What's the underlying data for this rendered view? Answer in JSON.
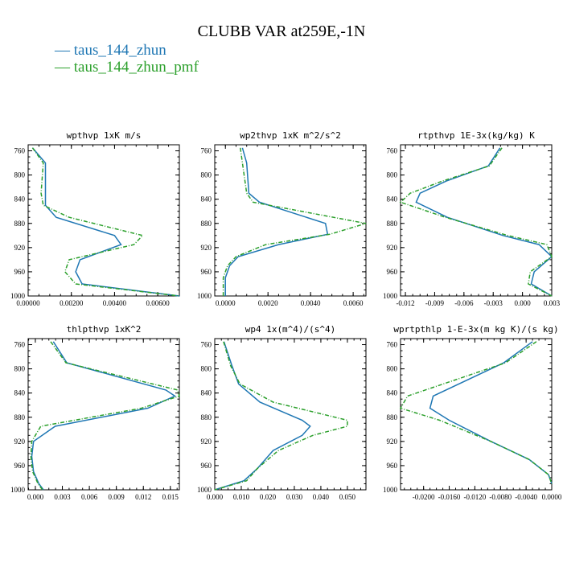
{
  "chart_title": "CLUBB VAR at259E,-1N",
  "legend": [
    "taus_144_zhun",
    "taus_144_zhun_pmf"
  ],
  "colors": {
    "series_0": "#1f77b4",
    "series_1": "#2ca02c"
  },
  "chart_data": [
    {
      "type": "line",
      "title": "wpthvp  1xK m/s",
      "xlim": [
        0.0,
        0.007
      ],
      "ylim": [
        1000,
        750
      ],
      "y_inverted": true,
      "xticks": [
        "0.00000",
        "0.00200",
        "0.00400",
        "0.00600"
      ],
      "yticks": [
        "760",
        "800",
        "840",
        "880",
        "920",
        "960",
        "1000"
      ],
      "y": [
        755,
        780,
        830,
        850,
        870,
        900,
        915,
        940,
        960,
        980,
        1000
      ],
      "series": [
        {
          "name": "taus_144_zhun",
          "values": [
            0.0002,
            0.0008,
            0.0008,
            0.0008,
            0.0013,
            0.004,
            0.0043,
            0.0024,
            0.0022,
            0.0025,
            0.007
          ]
        },
        {
          "name": "taus_144_zhun_pmf",
          "values": [
            0.0002,
            0.0007,
            0.0006,
            0.0007,
            0.0019,
            0.0053,
            0.0049,
            0.0019,
            0.0017,
            0.0022,
            0.007
          ]
        }
      ]
    },
    {
      "type": "line",
      "title": "wp2thvp  1xK m^2/s^2",
      "xlim": [
        -0.0005,
        0.0066
      ],
      "ylim": [
        1000,
        750
      ],
      "y_inverted": true,
      "xticks": [
        "0.0000",
        "0.0020",
        "0.0040",
        "0.0060"
      ],
      "yticks": [
        "760",
        "800",
        "840",
        "880",
        "920",
        "960",
        "1000"
      ],
      "y": [
        755,
        780,
        830,
        845,
        880,
        898,
        915,
        935,
        950,
        970,
        1000
      ],
      "series": [
        {
          "name": "taus_144_zhun",
          "values": [
            0.0008,
            0.001,
            0.0011,
            0.0016,
            0.0047,
            0.0048,
            0.0025,
            0.0006,
            0.0002,
            0.0,
            0.0
          ]
        },
        {
          "name": "taus_144_zhun_pmf",
          "values": [
            0.0007,
            0.0008,
            0.001,
            0.0013,
            0.0066,
            0.0049,
            0.0019,
            0.0005,
            0.0001,
            -0.0001,
            -0.0001
          ]
        }
      ]
    },
    {
      "type": "line",
      "title": "rtpthvp  1E-3x(kg/kg) K",
      "xlim": [
        -0.0125,
        0.003
      ],
      "ylim": [
        1000,
        750
      ],
      "y_inverted": true,
      "xticks": [
        "-0.012",
        "-0.009",
        "-0.006",
        "-0.003",
        "0.000",
        "0.003"
      ],
      "yticks": [
        "760",
        "800",
        "840",
        "880",
        "920",
        "960",
        "1000"
      ],
      "y": [
        755,
        785,
        810,
        830,
        845,
        870,
        900,
        915,
        935,
        960,
        980,
        1000
      ],
      "series": [
        {
          "name": "taus_144_zhun",
          "values": [
            -0.0023,
            -0.0035,
            -0.0078,
            -0.0105,
            -0.0109,
            -0.0077,
            -0.002,
            0.0017,
            0.003,
            0.0012,
            0.0009,
            0.003
          ]
        },
        {
          "name": "taus_144_zhun_pmf",
          "values": [
            -0.0021,
            -0.0034,
            -0.0082,
            -0.0115,
            -0.0125,
            -0.0079,
            -0.0015,
            0.0025,
            0.003,
            0.0008,
            0.0006,
            0.003
          ]
        }
      ]
    },
    {
      "type": "line",
      "title": "thlpthvp  1xK^2",
      "xlim": [
        -0.0008,
        0.016
      ],
      "ylim": [
        1000,
        750
      ],
      "y_inverted": true,
      "xticks": [
        "0.000",
        "0.003",
        "0.006",
        "0.009",
        "0.012",
        "0.015"
      ],
      "yticks": [
        "760",
        "800",
        "840",
        "880",
        "920",
        "960",
        "1000"
      ],
      "y": [
        755,
        790,
        835,
        845,
        865,
        895,
        920,
        945,
        970,
        990,
        1000
      ],
      "series": [
        {
          "name": "taus_144_zhun",
          "values": [
            0.002,
            0.0035,
            0.0145,
            0.0155,
            0.0125,
            0.0022,
            -0.0002,
            -0.0004,
            -0.0002,
            0.0004,
            0.0009
          ]
        },
        {
          "name": "taus_144_zhun_pmf",
          "values": [
            0.0017,
            0.0034,
            0.0158,
            0.016,
            0.0118,
            0.0006,
            -0.0004,
            -0.0005,
            -0.0003,
            0.0003,
            0.0008
          ]
        }
      ]
    },
    {
      "type": "line",
      "title": "wp4  1x(m^4)/(s^4)",
      "xlim": [
        0.0,
        0.057
      ],
      "ylim": [
        1000,
        750
      ],
      "y_inverted": true,
      "xticks": [
        "0.000",
        "0.010",
        "0.020",
        "0.030",
        "0.040",
        "0.050"
      ],
      "yticks": [
        "760",
        "800",
        "840",
        "880",
        "920",
        "960",
        "1000"
      ],
      "y": [
        755,
        795,
        825,
        855,
        885,
        895,
        910,
        935,
        965,
        985,
        1000
      ],
      "series": [
        {
          "name": "taus_144_zhun",
          "values": [
            0.0035,
            0.0065,
            0.009,
            0.017,
            0.033,
            0.036,
            0.033,
            0.022,
            0.016,
            0.011,
            0.0
          ]
        },
        {
          "name": "taus_144_zhun_pmf",
          "values": [
            0.0033,
            0.006,
            0.0095,
            0.022,
            0.05,
            0.05,
            0.037,
            0.024,
            0.016,
            0.012,
            0.0
          ]
        }
      ]
    },
    {
      "type": "line",
      "title": "wprtpthlp  1-E-3x(m kg K)/(s kg)",
      "xlim": [
        -0.0236,
        0.0
      ],
      "ylim": [
        1000,
        750
      ],
      "y_inverted": true,
      "xticks": [
        "-0.0200",
        "-0.0160",
        "-0.0120",
        "-0.0080",
        "-0.0040",
        "0.0000"
      ],
      "yticks": [
        "760",
        "800",
        "840",
        "880",
        "920",
        "960",
        "1000"
      ],
      "y": [
        755,
        790,
        845,
        865,
        885,
        920,
        950,
        975,
        990
      ],
      "series": [
        {
          "name": "taus_144_zhun",
          "values": [
            -0.003,
            -0.0075,
            -0.0185,
            -0.019,
            -0.016,
            -0.0095,
            -0.0035,
            -0.0005,
            0.0
          ]
        },
        {
          "name": "taus_144_zhun_pmf",
          "values": [
            -0.0024,
            -0.0072,
            -0.0225,
            -0.0236,
            -0.0175,
            -0.0095,
            -0.0035,
            -0.0005,
            0.0
          ]
        }
      ]
    }
  ]
}
